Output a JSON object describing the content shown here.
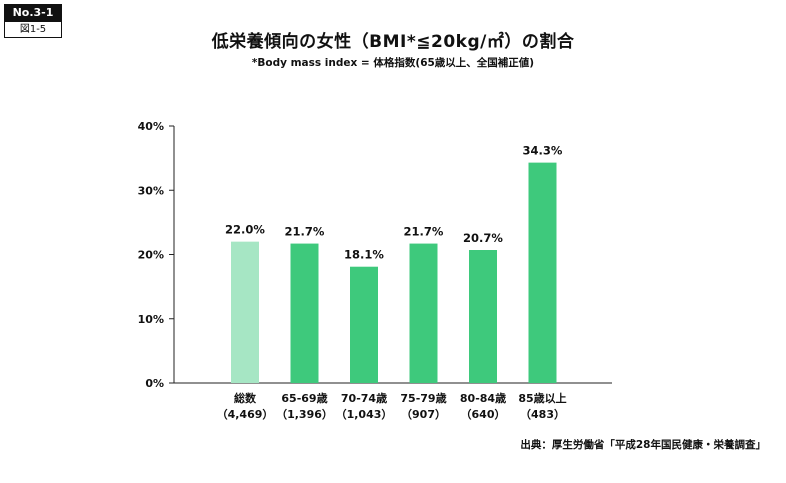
{
  "badge": {
    "number": "No.3-1",
    "figure": "図1-5"
  },
  "header": {
    "title": "低栄養傾向の女性（BMI*≦20kg/㎡）の割合",
    "subtitle": "*Body mass index = 体格指数(65歳以上、全国補正値)"
  },
  "source": "出典：厚生労働省「平成28年国民健康・栄養調査」",
  "colors": {
    "highlight": "#a6e6c4",
    "bar": "#3ec97c",
    "axis": "#222222"
  },
  "chart_data": {
    "type": "bar",
    "categories": [
      "総数",
      "65-69歳",
      "70-74歳",
      "75-79歳",
      "80-84歳",
      "85歳以上"
    ],
    "sample_sizes": [
      "（4,469）",
      "（1,396）",
      "（1,043）",
      "（907）",
      "（640）",
      "（483）"
    ],
    "values": [
      22.0,
      21.7,
      18.1,
      21.7,
      20.7,
      34.3
    ],
    "value_labels": [
      "22.0%",
      "21.7%",
      "18.1%",
      "21.7%",
      "20.7%",
      "34.3%"
    ],
    "y_ticks": [
      0,
      10,
      20,
      30,
      40
    ],
    "y_tick_labels": [
      "0%",
      "10%",
      "20%",
      "30%",
      "40%"
    ],
    "ylim": [
      0,
      40
    ],
    "title": "低栄養傾向の女性（BMI*≦20kg/㎡）の割合",
    "xlabel": "",
    "ylabel": "",
    "grid": false,
    "highlight_index": 0
  }
}
